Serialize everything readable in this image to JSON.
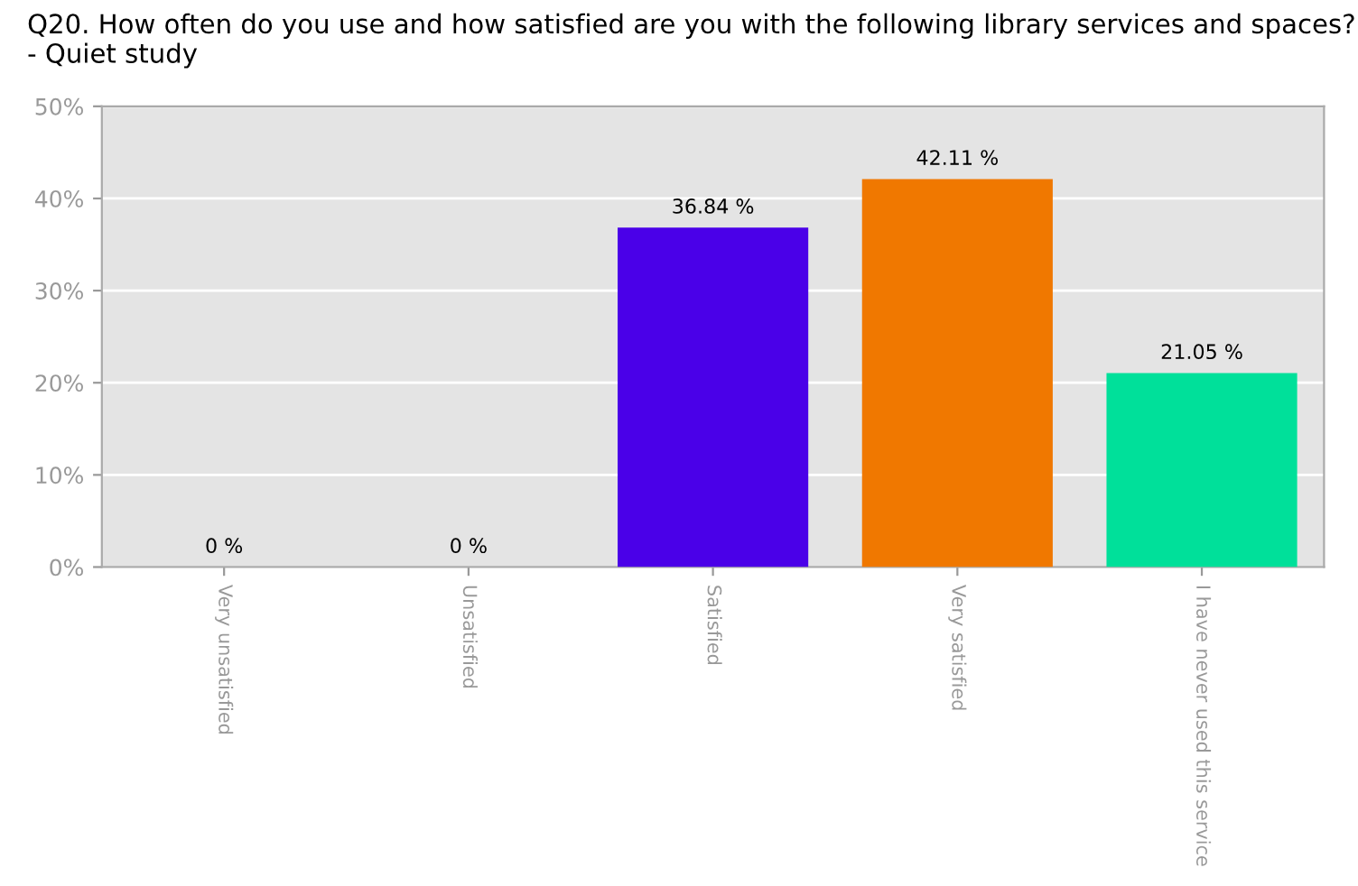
{
  "chart_data": {
    "type": "bar",
    "title": "Q20. How often do you use and how satisfied are you with the following library services and spaces? - Quiet study",
    "categories": [
      "Very unsatisfied",
      "Unsatisfied",
      "Satisfied",
      "Very satisfied",
      "I have never used this service"
    ],
    "values": [
      0,
      0,
      36.84,
      42.11,
      21.05
    ],
    "colors": [
      "#c0c0c0",
      "#c0c0c0",
      "#4a00e8",
      "#f07800",
      "#00e09a"
    ],
    "value_labels": [
      "0 %",
      "0 %",
      "36.84 %",
      "42.11 %",
      "21.05 %"
    ],
    "ylim": [
      0,
      50
    ],
    "yticks": [
      {
        "value": 0,
        "label": "0%"
      },
      {
        "value": 10,
        "label": "10%"
      },
      {
        "value": 20,
        "label": "20%"
      },
      {
        "value": 30,
        "label": "30%"
      },
      {
        "value": 40,
        "label": "40%"
      },
      {
        "value": 50,
        "label": "50%"
      }
    ],
    "grid": "y",
    "legend": false
  }
}
